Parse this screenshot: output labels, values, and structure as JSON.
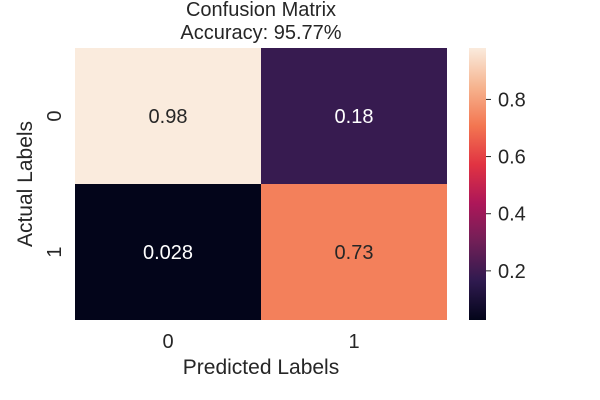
{
  "chart_data": {
    "type": "heatmap",
    "title": "Confusion Matrix",
    "subtitle": "Accuracy: 95.77%",
    "xlabel": "Predicted Labels",
    "ylabel": "Actual Labels",
    "x_categories": [
      "0",
      "1"
    ],
    "y_categories": [
      "0",
      "1"
    ],
    "values": [
      [
        0.98,
        0.18
      ],
      [
        0.028,
        0.73
      ]
    ],
    "annotations": [
      [
        "0.98",
        "0.18"
      ],
      [
        "0.028",
        "0.73"
      ]
    ],
    "colorbar": {
      "min": 0.028,
      "max": 0.98,
      "ticks": [
        0.2,
        0.4,
        0.6,
        0.8
      ],
      "tick_labels": [
        "0.2",
        "0.4",
        "0.6",
        "0.8"
      ]
    },
    "colormap": "rocket",
    "colormap_stops": [
      "#03051a",
      "#2f1a4f",
      "#701f57",
      "#ad1759",
      "#e13342",
      "#f37651",
      "#f6b48f",
      "#faebdd"
    ],
    "grid": false
  }
}
